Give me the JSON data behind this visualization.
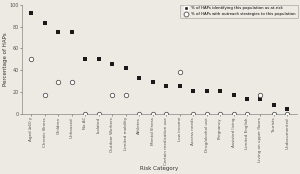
{
  "categories": [
    "Aged ≥60 y",
    "Chronic Illness",
    "Children",
    "Unhoused",
    "No AC",
    "Isolated",
    "Outdoor Workers",
    "Limited mobility",
    "Athletes",
    "Mental Illness",
    "Certain medication use",
    "Low income",
    "Access needs",
    "Drug/alcohol use",
    "Pregnancy",
    "Assisted living",
    "Limited English",
    "Living on upper floors",
    "Tourists",
    "Undocumented"
  ],
  "identified": [
    92,
    83,
    75,
    75,
    50,
    50,
    46,
    42,
    33,
    29,
    25,
    25,
    21,
    21,
    21,
    17,
    13,
    13,
    8,
    4
  ],
  "outreach": [
    50,
    17,
    29,
    29,
    0,
    0,
    17,
    17,
    0,
    0,
    0,
    38,
    0,
    0,
    0,
    0,
    0,
    17,
    0,
    0
  ],
  "ylabel": "Percentage of HAPs",
  "xlabel": "Risk Category",
  "legend_filled": "% of HAPs identifying this population as at-risk",
  "legend_open": "% of HAPs with outreach strategies to this population",
  "ylim": [
    0,
    100
  ],
  "yticks": [
    0,
    20,
    40,
    60,
    80,
    100
  ],
  "background_color": "#ede9e3",
  "filled_color": "#1a1a1a",
  "open_edgecolor": "#555555"
}
